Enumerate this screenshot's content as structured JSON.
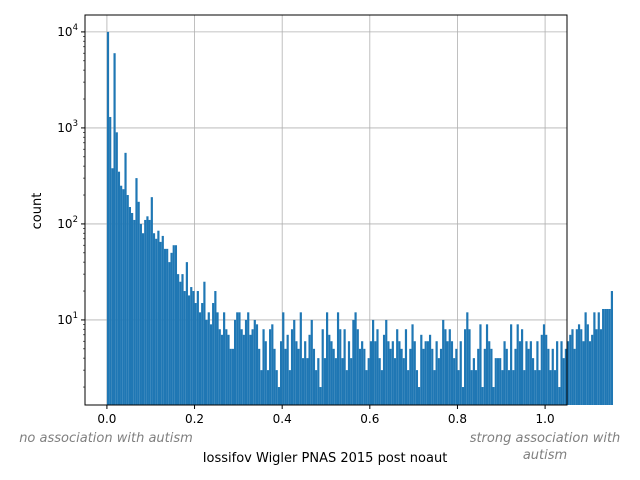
{
  "chart_data": {
    "type": "bar",
    "title": "",
    "xlabel": "Iossifov Wigler PNAS 2015 post noaut",
    "ylabel": "count",
    "xlim": [
      -0.05,
      1.05
    ],
    "ylim": [
      1.3,
      15000
    ],
    "yscale": "log",
    "grid": true,
    "bar_color": "#1f77b4",
    "bin_start": 0.0,
    "bin_width": 0.005,
    "x_ticks": [
      0.0,
      0.2,
      0.4,
      0.6,
      0.8,
      1.0
    ],
    "x_tick_labels": [
      "0.0",
      "0.2",
      "0.4",
      "0.6",
      "0.8",
      "1.0"
    ],
    "y_ticks": [
      10,
      100,
      1000,
      10000
    ],
    "y_tick_labels": [
      {
        "base": "10",
        "exp": "1"
      },
      {
        "base": "10",
        "exp": "2"
      },
      {
        "base": "10",
        "exp": "3"
      },
      {
        "base": "10",
        "exp": "4"
      }
    ],
    "annotations": {
      "left": "no association with autism",
      "right": [
        "strong association with",
        "autism"
      ]
    },
    "counts": [
      10000,
      1300,
      380,
      6000,
      900,
      350,
      250,
      230,
      550,
      200,
      150,
      130,
      110,
      300,
      170,
      100,
      80,
      110,
      120,
      110,
      190,
      80,
      70,
      85,
      65,
      75,
      55,
      55,
      40,
      50,
      60,
      60,
      30,
      25,
      30,
      20,
      40,
      18,
      22,
      20,
      15,
      20,
      12,
      15,
      25,
      10,
      12,
      9,
      15,
      20,
      12,
      8,
      7,
      12,
      8,
      7,
      5,
      5,
      10,
      12,
      12,
      8,
      7,
      10,
      12,
      7,
      8,
      10,
      9,
      5,
      3,
      8,
      6,
      3,
      8,
      9,
      5,
      3,
      2,
      6,
      12,
      5,
      7,
      3,
      8,
      10,
      6,
      5,
      12,
      4,
      6,
      4,
      7,
      10,
      5,
      3,
      4,
      2,
      8,
      4,
      12,
      7,
      6,
      5,
      4,
      12,
      8,
      4,
      8,
      3,
      6,
      4,
      10,
      12,
      8,
      5,
      6,
      5,
      3,
      4,
      6,
      10,
      6,
      8,
      4,
      3,
      7,
      10,
      6,
      5,
      6,
      4,
      8,
      6,
      5,
      4,
      8,
      3,
      5,
      9,
      6,
      3,
      2,
      7,
      5,
      6,
      6,
      7,
      5,
      3,
      6,
      4,
      5,
      10,
      8,
      6,
      8,
      6,
      4,
      5,
      3,
      6,
      2,
      8,
      12,
      8,
      3,
      4,
      3,
      5,
      9,
      2,
      5,
      9,
      6,
      5,
      2,
      4,
      4,
      4,
      3,
      6,
      5,
      3,
      9,
      3,
      5,
      9,
      6,
      8,
      3,
      6,
      5,
      6,
      4,
      3,
      6,
      3,
      7,
      9,
      7,
      5,
      3,
      5,
      3,
      6,
      2,
      6,
      4,
      5,
      6,
      7,
      8,
      5,
      8,
      9,
      8,
      6,
      12,
      9,
      6,
      7,
      12,
      8,
      12,
      8,
      13,
      13,
      13,
      13,
      20
    ]
  }
}
